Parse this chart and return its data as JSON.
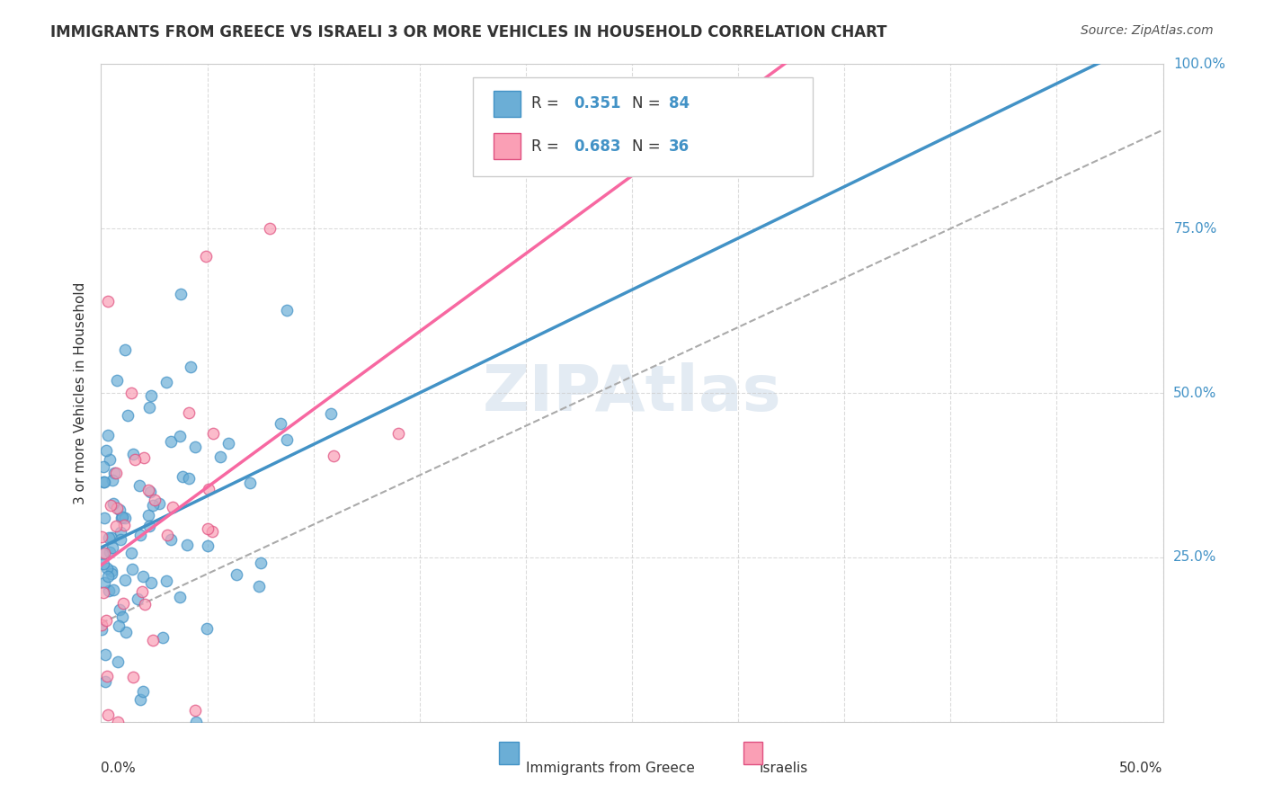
{
  "title": "IMMIGRANTS FROM GREECE VS ISRAELI 3 OR MORE VEHICLES IN HOUSEHOLD CORRELATION CHART",
  "source": "Source: ZipAtlas.com",
  "xlabel": "",
  "ylabel": "3 or more Vehicles in Household",
  "xlim": [
    0.0,
    0.5
  ],
  "ylim": [
    0.0,
    1.0
  ],
  "xticks": [
    0.0,
    0.05,
    0.1,
    0.15,
    0.2,
    0.25,
    0.3,
    0.35,
    0.4,
    0.45,
    0.5
  ],
  "yticks": [
    0.0,
    0.25,
    0.5,
    0.75,
    1.0
  ],
  "xtick_labels": [
    "0.0%",
    "",
    "",
    "",
    "",
    "",
    "",
    "",
    "",
    "",
    "50.0%"
  ],
  "ytick_labels": [
    "",
    "25.0%",
    "50.0%",
    "75.0%",
    "100.0%"
  ],
  "legend_R1": "R = 0.351",
  "legend_N1": "N = 84",
  "legend_R2": "R = 0.683",
  "legend_N2": "N = 36",
  "legend_label1": "Immigrants from Greece",
  "legend_label2": "Israelis",
  "blue_color": "#6baed6",
  "pink_color": "#fa9fb5",
  "blue_line_color": "#4292c6",
  "pink_line_color": "#f768a1",
  "dashed_line_color": "#aaaaaa",
  "watermark": "ZIPAtlas",
  "blue_R": 0.351,
  "blue_N": 84,
  "pink_R": 0.683,
  "pink_N": 36,
  "blue_scatter_seed": 42,
  "pink_scatter_seed": 99,
  "background_color": "#ffffff",
  "grid_color": "#cccccc"
}
